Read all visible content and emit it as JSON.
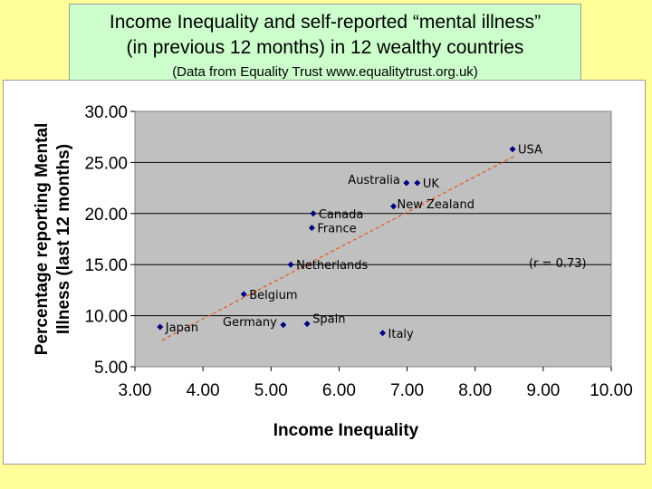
{
  "title_line1": "Income Inequality and self-reported “mental illness”",
  "title_line2": "(in previous 12 months) in 12 wealthy countries",
  "subtitle": "(Data from Equality Trust  www.equalitytrust.org.uk)",
  "chart_data": {
    "type": "scatter",
    "xlabel": "Income Inequality",
    "ylabel_line1": "Percentage reporting Mental",
    "ylabel_line2": "Illness (last 12 months)",
    "xlim": [
      3.0,
      10.0
    ],
    "ylim": [
      5.0,
      30.0
    ],
    "x_ticks": [
      "3.00",
      "4.00",
      "5.00",
      "6.00",
      "7.00",
      "8.00",
      "9.00",
      "10.00"
    ],
    "y_ticks": [
      "5.00",
      "10.00",
      "15.00",
      "20.00",
      "25.00",
      "30.00"
    ],
    "grid": "horizontal",
    "annotation": "(r = 0.73)",
    "trendline": {
      "style": "dashed",
      "color": "#e8511c",
      "x": [
        3.4,
        8.6
      ],
      "y": [
        7.6,
        25.7
      ]
    },
    "marker_color": "#000080",
    "plot_bg": "#c0c0c0",
    "points": [
      {
        "label": "USA",
        "x": 8.55,
        "y": 26.3
      },
      {
        "label": "Australia",
        "x": 6.99,
        "y": 23.0
      },
      {
        "label": "UK",
        "x": 7.15,
        "y": 23.0
      },
      {
        "label": "New Zealand",
        "x": 6.8,
        "y": 20.7
      },
      {
        "label": "Canada",
        "x": 5.62,
        "y": 20.0
      },
      {
        "label": "France",
        "x": 5.6,
        "y": 18.6
      },
      {
        "label": "Netherlands",
        "x": 5.29,
        "y": 15.0
      },
      {
        "label": "Belgium",
        "x": 4.6,
        "y": 12.1
      },
      {
        "label": "Japan",
        "x": 3.37,
        "y": 8.9
      },
      {
        "label": "Germany",
        "x": 5.18,
        "y": 9.1
      },
      {
        "label": "Spain",
        "x": 5.53,
        "y": 9.2
      },
      {
        "label": "Italy",
        "x": 6.64,
        "y": 8.3
      }
    ]
  }
}
